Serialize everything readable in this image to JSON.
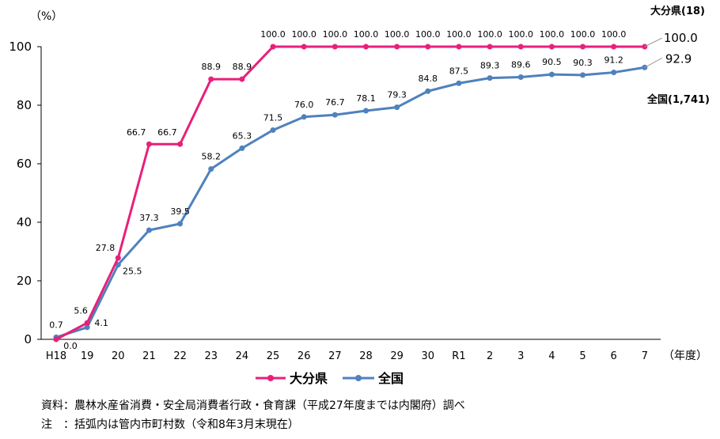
{
  "chart_data": {
    "type": "line",
    "y_unit": "（%）",
    "x_unit": "（年度）",
    "categories": [
      "H18",
      "19",
      "20",
      "21",
      "22",
      "23",
      "24",
      "25",
      "26",
      "27",
      "28",
      "29",
      "30",
      "R1",
      "2",
      "3",
      "4",
      "5",
      "6",
      "7"
    ],
    "ylim": [
      0,
      100
    ],
    "yticks": [
      0,
      20,
      40,
      60,
      80,
      100
    ],
    "grid": false,
    "legend": "bottom",
    "series": [
      {
        "name": "大分県",
        "end_label": "大分県(18)",
        "color": "#e8207a",
        "values": [
          0.0,
          5.6,
          27.8,
          66.7,
          66.7,
          88.9,
          88.9,
          100.0,
          100.0,
          100.0,
          100.0,
          100.0,
          100.0,
          100.0,
          100.0,
          100.0,
          100.0,
          100.0,
          100.0,
          100.0
        ],
        "labels": [
          "0.0",
          "5.6",
          "27.8",
          "66.7",
          "66.7",
          "88.9",
          "88.9",
          "100.0",
          "100.0",
          "100.0",
          "100.0",
          "100.0",
          "100.0",
          "100.0",
          "100.0",
          "100.0",
          "100.0",
          "100.0",
          "100.0",
          "100.0"
        ]
      },
      {
        "name": "全国",
        "end_label": "全国(1,741)",
        "color": "#4f81bd",
        "values": [
          0.7,
          4.1,
          25.5,
          37.3,
          39.5,
          58.2,
          65.3,
          71.5,
          76.0,
          76.7,
          78.1,
          79.3,
          84.8,
          87.5,
          89.3,
          89.6,
          90.5,
          90.3,
          91.2,
          92.9
        ],
        "labels": [
          "0.7",
          "4.1",
          "25.5",
          "37.3",
          "39.5",
          "58.2",
          "65.3",
          "71.5",
          "76.0",
          "76.7",
          "78.1",
          "79.3",
          "84.8",
          "87.5",
          "89.3",
          "89.6",
          "90.5",
          "90.3",
          "91.2",
          "92.9"
        ]
      }
    ]
  },
  "notes": {
    "source": "資料：農林水産省消費・安全局消費者行政・食育課（平成27年度までは内閣府）調べ",
    "remark": "注　：括弧内は管内市町村数（令和8年3月末現在）"
  }
}
